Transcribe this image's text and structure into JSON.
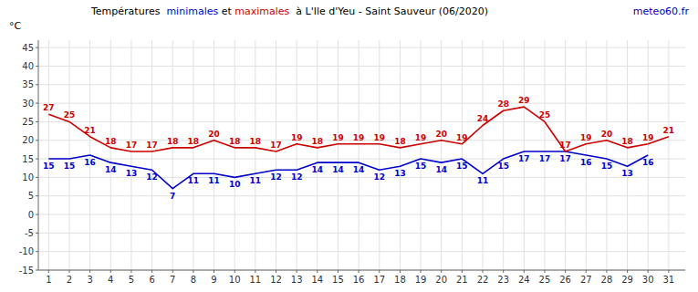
{
  "chart_data": {
    "type": "line",
    "title": "Températures  minimales et maximales  à L'Ile d'Yeu - Saint Sauveur (06/2020)",
    "ylabel": "°C",
    "annotations": [
      {
        "text": "meteo60.fr",
        "color": "#0000bb"
      }
    ],
    "x": [
      1,
      2,
      3,
      4,
      5,
      6,
      7,
      8,
      9,
      10,
      11,
      12,
      13,
      14,
      15,
      16,
      17,
      18,
      19,
      20,
      21,
      22,
      23,
      24,
      25,
      26,
      27,
      28,
      29,
      30,
      31
    ],
    "series": [
      {
        "name": "minimales",
        "color": "#0000cc",
        "values": [
          15,
          15,
          16,
          14,
          13,
          12,
          7,
          11,
          11,
          10,
          11,
          12,
          12,
          14,
          14,
          14,
          12,
          13,
          15,
          14,
          15,
          11,
          15,
          17,
          17,
          17,
          16,
          15,
          13,
          16,
          null
        ]
      },
      {
        "name": "maximales",
        "color": "#cc0000",
        "values": [
          27,
          25,
          21,
          18,
          17,
          17,
          18,
          18,
          20,
          18,
          18,
          17,
          19,
          18,
          19,
          19,
          19,
          18,
          19,
          20,
          19,
          24,
          28,
          29,
          25,
          17,
          19,
          20,
          18,
          19,
          21
        ]
      }
    ],
    "xlim": [
      0.5,
      31.8
    ],
    "xticks": [
      1,
      2,
      3,
      4,
      5,
      6,
      7,
      8,
      9,
      10,
      11,
      12,
      13,
      14,
      15,
      16,
      17,
      18,
      19,
      20,
      21,
      22,
      23,
      24,
      25,
      26,
      27,
      28,
      29,
      30,
      31
    ],
    "ylim": [
      -15,
      47
    ],
    "yticks": [
      -15,
      -10,
      -5,
      0,
      5,
      10,
      15,
      20,
      25,
      30,
      35,
      40,
      45
    ],
    "grid": true,
    "data_labels": true
  }
}
